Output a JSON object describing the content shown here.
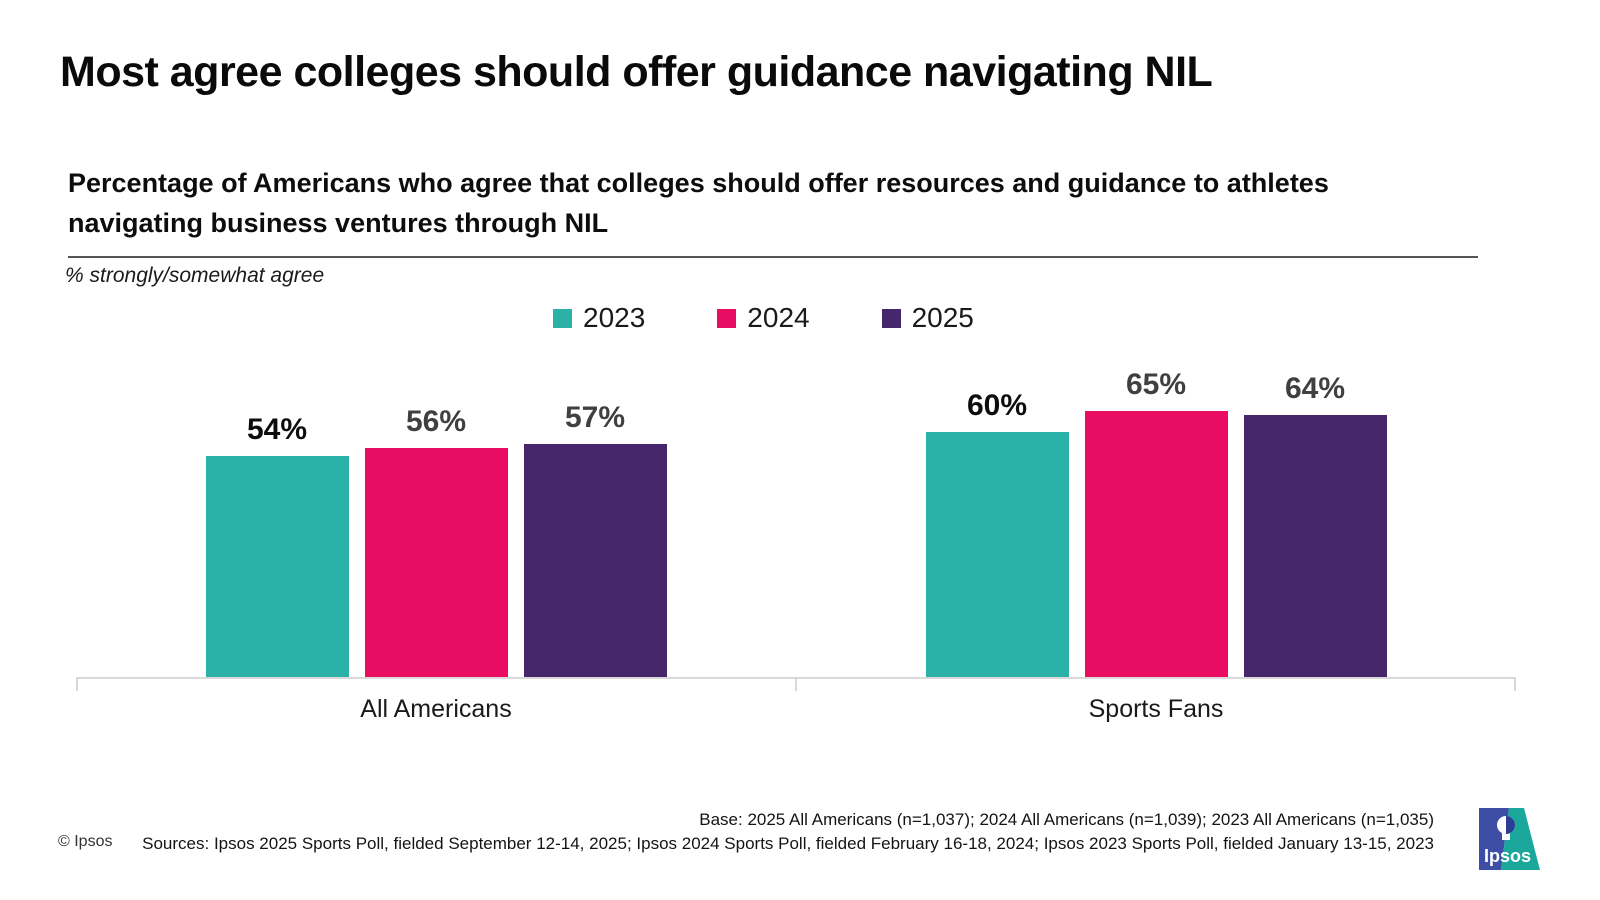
{
  "page": {
    "title": "Most agree colleges should offer guidance navigating NIL",
    "subtitle_lines": [
      "Percentage of Americans who agree that colleges should offer resources and guidance to athletes",
      "navigating business ventures through NIL"
    ]
  },
  "chart_data": {
    "type": "bar",
    "title": "Most agree colleges should offer guidance navigating NIL",
    "subtitle": "Percentage of Americans who agree that colleges should offer resources and guidance to athletes navigating business ventures through NIL",
    "note": "% strongly/somewhat agree",
    "categories": [
      "All Americans",
      "Sports Fans"
    ],
    "series": [
      {
        "name": "2023",
        "color": "#2BB1A8",
        "label_color": "#0d0d0d",
        "values": [
          54,
          60
        ]
      },
      {
        "name": "2024",
        "color": "#E90C63",
        "label_color": "#404040",
        "values": [
          56,
          65
        ]
      },
      {
        "name": "2025",
        "color": "#46276B",
        "label_color": "#404040",
        "values": [
          57,
          64
        ]
      }
    ],
    "value_suffix": "%",
    "xlabel": "",
    "ylabel": "",
    "ylim": [
      0,
      79
    ],
    "grid": false,
    "legend_position": "top-center"
  },
  "footer": {
    "copyright": "© Ipsos",
    "base": "Base: 2025 All Americans (n=1,037); 2024 All Americans (n=1,039); 2023 All Americans (n=1,035)",
    "sources": "Sources: Ipsos 2025 Sports Poll, fielded September 12-14, 2025; Ipsos 2024 Sports Poll, fielded February 16-18, 2024; Ipsos 2023 Sports Poll, fielded January 13-15, 2023",
    "logo_text": "Ipsos",
    "logo_blue": "#3E4EA4",
    "logo_teal": "#1CA79C",
    "logo_navy": "#2B3C93"
  }
}
